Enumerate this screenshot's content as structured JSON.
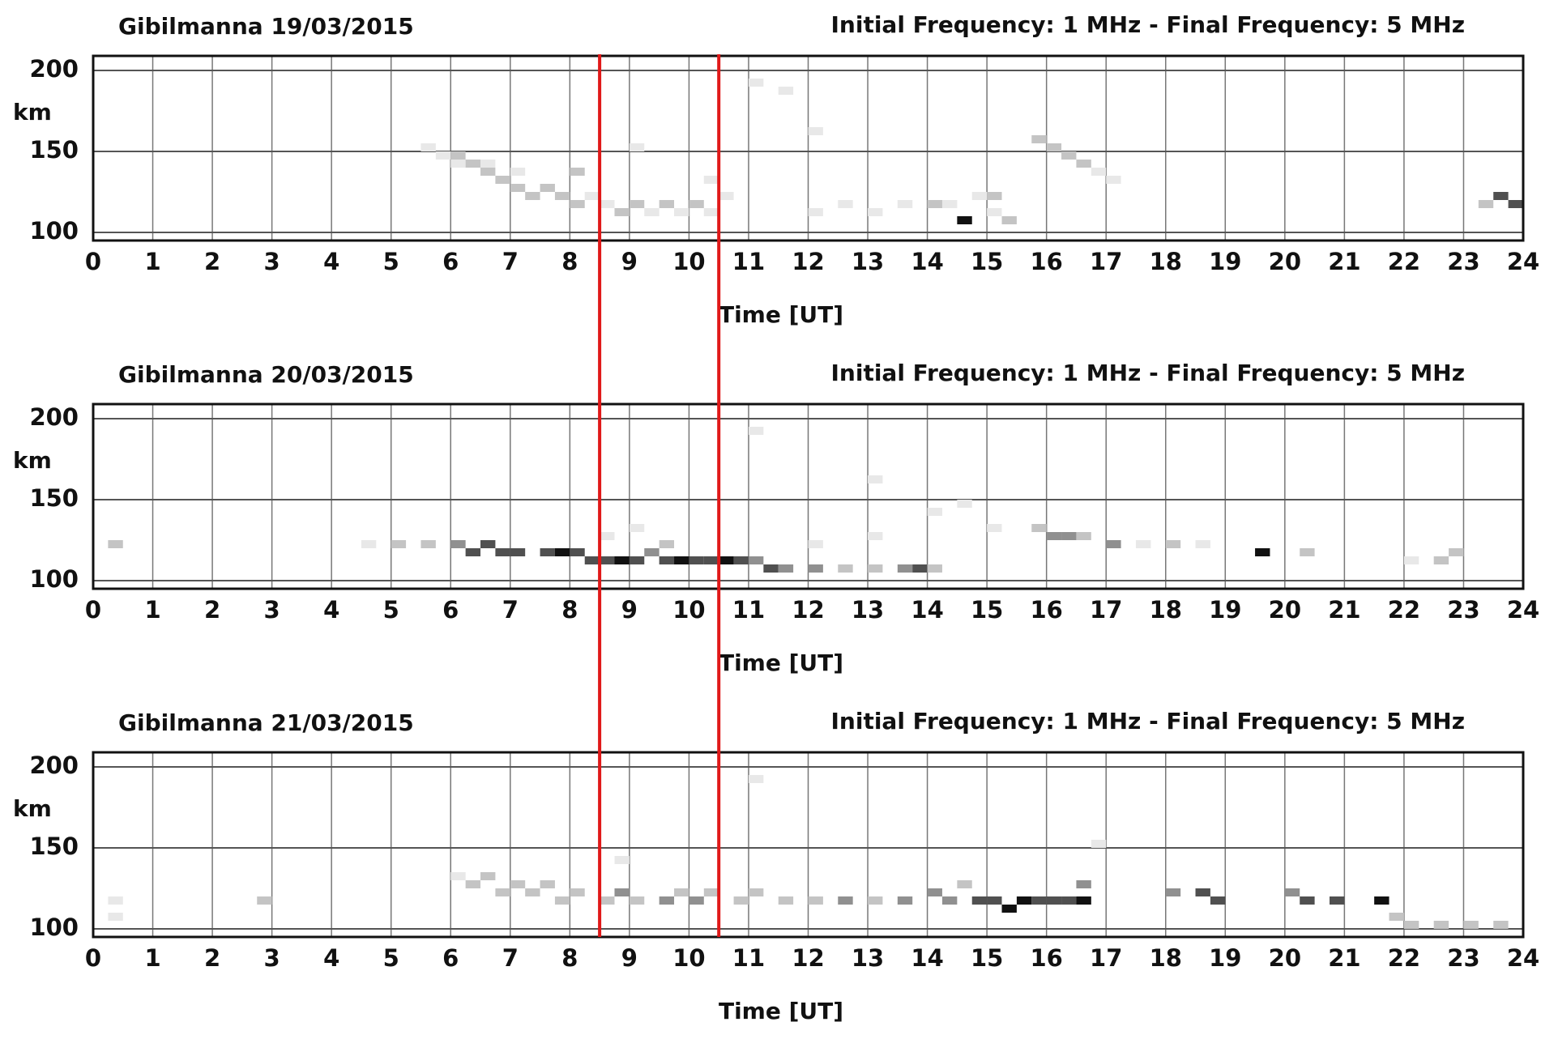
{
  "chart_data": [
    {
      "type": "heatmap",
      "title": "Gibilmanna 19/03/2015",
      "subtitle": "Initial Frequency: 1 MHz - Final Frequency: 5 MHz",
      "ylabel": "km",
      "xlabel": "Time [UT]",
      "xlim": [
        0,
        24
      ],
      "xticks": [
        0,
        1,
        2,
        3,
        4,
        5,
        6,
        7,
        8,
        9,
        10,
        11,
        12,
        13,
        14,
        15,
        16,
        17,
        18,
        19,
        20,
        21,
        22,
        23,
        24
      ],
      "ylim": [
        95,
        209
      ],
      "yticks": [
        100,
        150,
        200
      ],
      "grid": true,
      "colors": [
        "#e8e8e8",
        "#c4c4c4",
        "#909090",
        "#505050",
        "#111111"
      ],
      "x": [
        5.5,
        5.75,
        6,
        6,
        6.25,
        6.5,
        6.5,
        6.75,
        7,
        7,
        7.25,
        7.5,
        7.75,
        8,
        8,
        8.25,
        8.5,
        8.75,
        9,
        9.25,
        9.5,
        9.75,
        10,
        10.25,
        10.5,
        11,
        11.5,
        12,
        12.5,
        13,
        13.5,
        14,
        14.25,
        14.5,
        14.75,
        15,
        15,
        15.25,
        15.75,
        16,
        16.25,
        16.5,
        16.75,
        17,
        23.25,
        23.5,
        23.75,
        10.25,
        9,
        12
      ],
      "y": [
        150,
        145,
        145,
        140,
        140,
        135,
        140,
        130,
        125,
        135,
        120,
        125,
        120,
        115,
        135,
        120,
        115,
        110,
        115,
        110,
        115,
        110,
        115,
        110,
        120,
        190,
        185,
        110,
        115,
        110,
        115,
        115,
        115,
        105,
        120,
        120,
        110,
        105,
        155,
        150,
        145,
        140,
        135,
        130,
        115,
        120,
        115,
        130,
        150,
        160
      ],
      "values": [
        1,
        1,
        2,
        1,
        2,
        2,
        1,
        2,
        2,
        1,
        2,
        2,
        2,
        2,
        2,
        1,
        1,
        2,
        2,
        1,
        2,
        1,
        2,
        1,
        1,
        1,
        1,
        1,
        1,
        1,
        1,
        2,
        1,
        5,
        1,
        2,
        1,
        2,
        2,
        2,
        2,
        2,
        1,
        1,
        2,
        4,
        4,
        1,
        1,
        1
      ]
    },
    {
      "type": "heatmap",
      "title": "Gibilmanna 20/03/2015",
      "subtitle": "Initial Frequency: 1 MHz - Final Frequency: 5 MHz",
      "ylabel": "km",
      "xlabel": "Time [UT]",
      "xlim": [
        0,
        24
      ],
      "xticks": [
        0,
        1,
        2,
        3,
        4,
        5,
        6,
        7,
        8,
        9,
        10,
        11,
        12,
        13,
        14,
        15,
        16,
        17,
        18,
        19,
        20,
        21,
        22,
        23,
        24
      ],
      "ylim": [
        95,
        209
      ],
      "yticks": [
        100,
        150,
        200
      ],
      "grid": true,
      "colors": [
        "#e8e8e8",
        "#c4c4c4",
        "#909090",
        "#505050",
        "#111111"
      ],
      "x": [
        4.5,
        5,
        5.5,
        6,
        6.25,
        6.5,
        6.75,
        7,
        7.5,
        7.75,
        8,
        8.25,
        8.5,
        8.75,
        9,
        9.25,
        9.5,
        9.75,
        10,
        10.25,
        10.5,
        10.75,
        11,
        11.25,
        11.5,
        12,
        12.5,
        13,
        13.5,
        13.75,
        14,
        8.5,
        9,
        9.5,
        12,
        13,
        14,
        14.5,
        15,
        15.75,
        16,
        16.25,
        16.5,
        17,
        17.5,
        18,
        18.5,
        19.5,
        20.25,
        22,
        22.5,
        22.75,
        0.25,
        13,
        11
      ],
      "y": [
        120,
        120,
        120,
        120,
        115,
        120,
        115,
        115,
        115,
        115,
        115,
        110,
        110,
        110,
        110,
        115,
        110,
        110,
        110,
        110,
        110,
        110,
        110,
        105,
        105,
        105,
        105,
        105,
        105,
        105,
        105,
        125,
        130,
        120,
        120,
        125,
        140,
        145,
        130,
        130,
        125,
        125,
        125,
        120,
        120,
        120,
        120,
        115,
        115,
        110,
        110,
        115,
        120,
        160,
        190
      ],
      "values": [
        1,
        2,
        2,
        3,
        4,
        4,
        4,
        4,
        4,
        5,
        4,
        4,
        4,
        5,
        4,
        3,
        4,
        5,
        4,
        4,
        5,
        4,
        3,
        4,
        3,
        3,
        2,
        2,
        3,
        4,
        2,
        1,
        1,
        2,
        1,
        1,
        1,
        1,
        1,
        2,
        3,
        3,
        2,
        3,
        1,
        2,
        1,
        5,
        2,
        1,
        2,
        2,
        2,
        1,
        1
      ]
    },
    {
      "type": "heatmap",
      "title": "Gibilmanna 21/03/2015",
      "subtitle": "Initial Frequency: 1 MHz - Final Frequency: 5 MHz",
      "ylabel": "km",
      "xlabel": "Time [UT]",
      "xlim": [
        0,
        24
      ],
      "xticks": [
        0,
        1,
        2,
        3,
        4,
        5,
        6,
        7,
        8,
        9,
        10,
        11,
        12,
        13,
        14,
        15,
        16,
        17,
        18,
        19,
        20,
        21,
        22,
        23,
        24
      ],
      "ylim": [
        95,
        209
      ],
      "yticks": [
        100,
        150,
        200
      ],
      "grid": true,
      "colors": [
        "#e8e8e8",
        "#c4c4c4",
        "#909090",
        "#505050",
        "#111111"
      ],
      "x": [
        0.25,
        0.25,
        2.75,
        6,
        6.25,
        6.5,
        6.75,
        7,
        7.25,
        7.5,
        7.75,
        8,
        8.5,
        8.75,
        9,
        9.5,
        9.75,
        10,
        10.25,
        10.75,
        11,
        11.5,
        12,
        12.5,
        13,
        13.5,
        14,
        14.25,
        14.5,
        14.75,
        15,
        15.25,
        15.5,
        15.75,
        16,
        16.25,
        16.5,
        16.5,
        16.75,
        18,
        18.5,
        18.75,
        20,
        20.25,
        20.75,
        21.5,
        21.75,
        22,
        22.5,
        23,
        23.5,
        8.75,
        11
      ],
      "y": [
        105,
        115,
        115,
        130,
        125,
        130,
        120,
        125,
        120,
        125,
        115,
        120,
        115,
        120,
        115,
        115,
        120,
        115,
        120,
        115,
        120,
        115,
        115,
        115,
        115,
        115,
        120,
        115,
        125,
        115,
        115,
        110,
        115,
        115,
        115,
        115,
        115,
        125,
        150,
        120,
        120,
        115,
        120,
        115,
        115,
        115,
        105,
        100,
        100,
        100,
        100,
        140,
        190
      ],
      "values": [
        1,
        1,
        2,
        1,
        2,
        2,
        2,
        2,
        2,
        2,
        2,
        2,
        2,
        3,
        2,
        3,
        2,
        3,
        2,
        2,
        2,
        2,
        2,
        3,
        2,
        3,
        3,
        3,
        2,
        4,
        4,
        5,
        5,
        4,
        4,
        4,
        5,
        3,
        1,
        3,
        4,
        4,
        3,
        4,
        4,
        5,
        2,
        2,
        2,
        2,
        2,
        1,
        1
      ]
    }
  ],
  "reference_lines": {
    "x": [
      8.5,
      10.5
    ],
    "color": "#e01818"
  }
}
